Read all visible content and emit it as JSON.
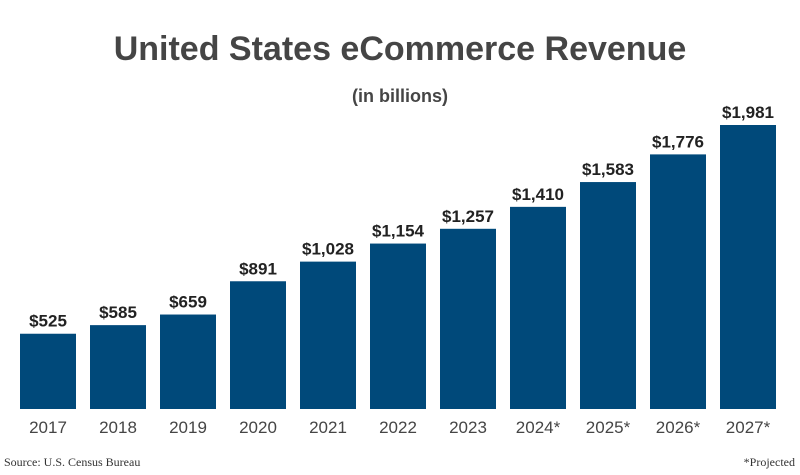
{
  "chart_data": {
    "type": "bar",
    "title": "United States eCommerce Revenue",
    "subtitle": "(in billions)",
    "categories": [
      "2017",
      "2018",
      "2019",
      "2020",
      "2021",
      "2022",
      "2023",
      "2024*",
      "2025*",
      "2026*",
      "2027*"
    ],
    "values": [
      525,
      585,
      659,
      891,
      1028,
      1154,
      1257,
      1410,
      1583,
      1776,
      1981
    ],
    "data_labels": [
      "$525",
      "$585",
      "$659",
      "$891",
      "$1,028",
      "$1,154",
      "$1,257",
      "$1,410",
      "$1,583",
      "$1,776",
      "$1,981"
    ],
    "xlabel": "",
    "ylabel": "",
    "ylim": [
      0,
      1981
    ],
    "grid": false,
    "bar_color": "#00497a",
    "text_color": "#454545"
  },
  "footer": {
    "source": "Source: U.S. Census Bureau",
    "note": "*Projected"
  }
}
